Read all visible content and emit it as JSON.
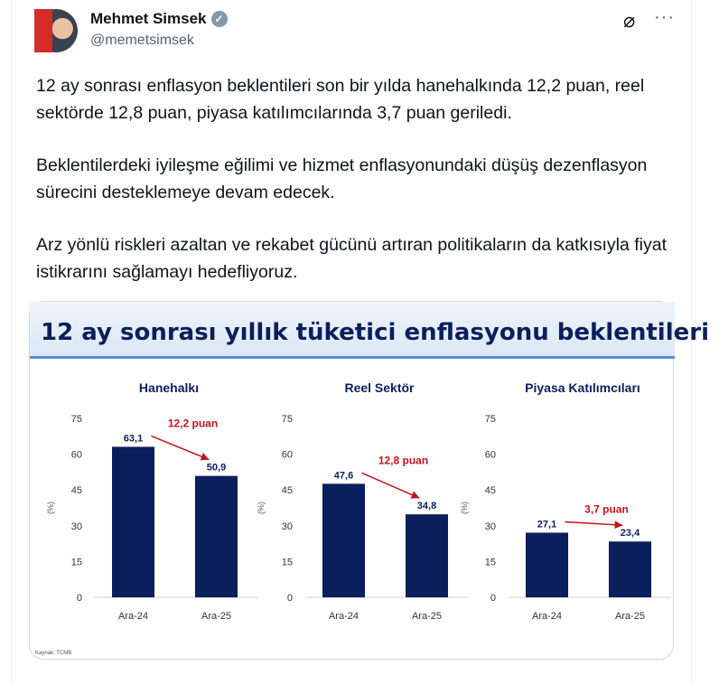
{
  "author": {
    "name": "Mehmet Simsek",
    "handle": "@memetsimsek",
    "verified": true
  },
  "icons": {
    "grok": "grok-icon",
    "more": "more-icon"
  },
  "tweet": {
    "paragraphs": [
      "12 ay sonrası enflasyon beklentileri son bir yılda hanehalkında 12,2 puan, reel sektörde 12,8 puan, piyasa katılımcılarında 3,7 puan geriledi.",
      "Beklentilerdeki iyileşme eğilimi ve hizmet enflasyonundaki düşüş dezenflasyon sürecini desteklemeye devam edecek.",
      "Arz yönlü riskleri azaltan ve rekabet gücünü artıran politikaların da katkısıyla fiyat istikrarını sağlamayı hedefliyoruz."
    ]
  },
  "media": {
    "title": "12 ay sonrası yıllık tüketici enflasyonu beklentileri",
    "source": "Kaynak: TCMB",
    "colors": {
      "bar": "#0b1f5c",
      "annotation": "#c0141c",
      "title_bar": "#dbe7f5"
    }
  },
  "chart_data": [
    {
      "type": "bar",
      "title": "Hanehalkı",
      "categories": [
        "Ara-24",
        "Ara-25"
      ],
      "values": [
        63.1,
        50.9
      ],
      "value_labels": [
        "63,1",
        "50,9"
      ],
      "ylabel": "(%)",
      "ylim": [
        0,
        75
      ],
      "yticks": [
        "0",
        "15",
        "30",
        "45",
        "60",
        "75"
      ],
      "annotation": "12,2 puan"
    },
    {
      "type": "bar",
      "title": "Reel Sektör",
      "categories": [
        "Ara-24",
        "Ara-25"
      ],
      "values": [
        47.6,
        34.8
      ],
      "value_labels": [
        "47,6",
        "34,8"
      ],
      "ylabel": "(%)",
      "ylim": [
        0,
        75
      ],
      "yticks": [
        "0",
        "15",
        "30",
        "45",
        "60",
        "75"
      ],
      "annotation": "12,8 puan"
    },
    {
      "type": "bar",
      "title": "Piyasa Katılımcıları",
      "categories": [
        "Ara-24",
        "Ara-25"
      ],
      "values": [
        27.1,
        23.4
      ],
      "value_labels": [
        "27,1",
        "23,4"
      ],
      "ylabel": "(%)",
      "ylim": [
        0,
        75
      ],
      "yticks": [
        "0",
        "15",
        "30",
        "45",
        "60",
        "75"
      ],
      "annotation": "3,7 puan"
    }
  ]
}
